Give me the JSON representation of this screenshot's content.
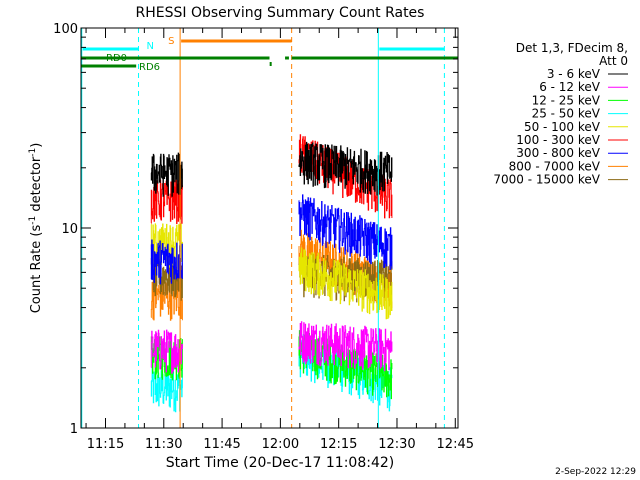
{
  "chart_data": {
    "type": "line",
    "title": "RHESSI Observing Summary Count Rates",
    "xlabel": "Start Time (20-Dec-17 11:08:42)",
    "ylabel_main": "Count Rate (s",
    "ylabel_exp1": "-1",
    "ylabel_mid": " detector",
    "ylabel_exp2": "-1",
    "ylabel_end": ")",
    "y_scale": "log",
    "ylim": [
      1,
      100
    ],
    "xlim_minutes": [
      0,
      97
    ],
    "x_ticks": [
      {
        "label": "11:15",
        "m": 6.3
      },
      {
        "label": "11:30",
        "m": 21.3
      },
      {
        "label": "11:45",
        "m": 36.3
      },
      {
        "label": "12:00",
        "m": 51.3
      },
      {
        "label": "12:15",
        "m": 66.3
      },
      {
        "label": "12:30",
        "m": 81.3
      },
      {
        "label": "12:45",
        "m": 96.3
      }
    ],
    "y_tick_labels": [
      {
        "label": "100",
        "v": 100
      },
      {
        "label": "10",
        "v": 10
      },
      {
        "label": "1",
        "v": 1
      }
    ],
    "legend_header": [
      "Det 1,3, FDecim 8,",
      "Att 0"
    ],
    "legend_position": "right",
    "series": [
      {
        "name": "3 - 6 keV",
        "color": "#000000",
        "seg1": 19,
        "seg2_start": 22,
        "seg2_end": 19
      },
      {
        "name": "6 - 12 keV",
        "color": "#ff00ff",
        "seg1": 2.5,
        "seg2_start": 2.8,
        "seg2_end": 2.5
      },
      {
        "name": "12 - 25 keV",
        "color": "#00ff00",
        "seg1": 2.3,
        "seg2_start": 2.5,
        "seg2_end": 1.8
      },
      {
        "name": "25 - 50 keV",
        "color": "#00ffff",
        "seg1": 1.6,
        "seg2_start": 2.4,
        "seg2_end": 1.6
      },
      {
        "name": "50 - 100 keV",
        "color": "#e6e600",
        "seg1": 8.5,
        "seg2_start": 6.5,
        "seg2_end": 4.5
      },
      {
        "name": "100 - 300 keV",
        "color": "#ff0000",
        "seg1": 14,
        "seg2_start": 24,
        "seg2_end": 14
      },
      {
        "name": "300 - 800 keV",
        "color": "#0000ff",
        "seg1": 7.0,
        "seg2_start": 12,
        "seg2_end": 8
      },
      {
        "name": "800 - 7000 keV",
        "color": "#ff8000",
        "seg1": 4.6,
        "seg2_start": 8,
        "seg2_end": 5.2
      },
      {
        "name": "7000 - 15000 keV",
        "color": "#8b6914",
        "seg1": 5.8,
        "seg2_start": 6.0,
        "seg2_end": 5.5
      }
    ],
    "segments_minutes": [
      [
        18.0,
        26.2
      ],
      [
        56.0,
        80.0
      ]
    ],
    "annotations": {
      "night_label": "N",
      "saa_label": "S",
      "rd0_label": "RD0",
      "rd6_label": "RD6",
      "night_color": "#00ffff",
      "saa_color": "#ff8000",
      "decim_color": "#008000",
      "night_intervals": [
        [
          0.2,
          14.8
        ],
        [
          76.5,
          93.5
        ]
      ],
      "saa_intervals": [
        [
          25.5,
          54.2
        ]
      ],
      "rd0_intervals": [
        [
          0,
          48.5
        ],
        [
          52.5,
          53.5
        ],
        [
          54.2,
          98
        ]
      ],
      "rd6_intervals": [
        [
          0,
          14.2
        ]
      ]
    }
  },
  "footer": {
    "timestamp": "2-Sep-2022 12:29"
  }
}
